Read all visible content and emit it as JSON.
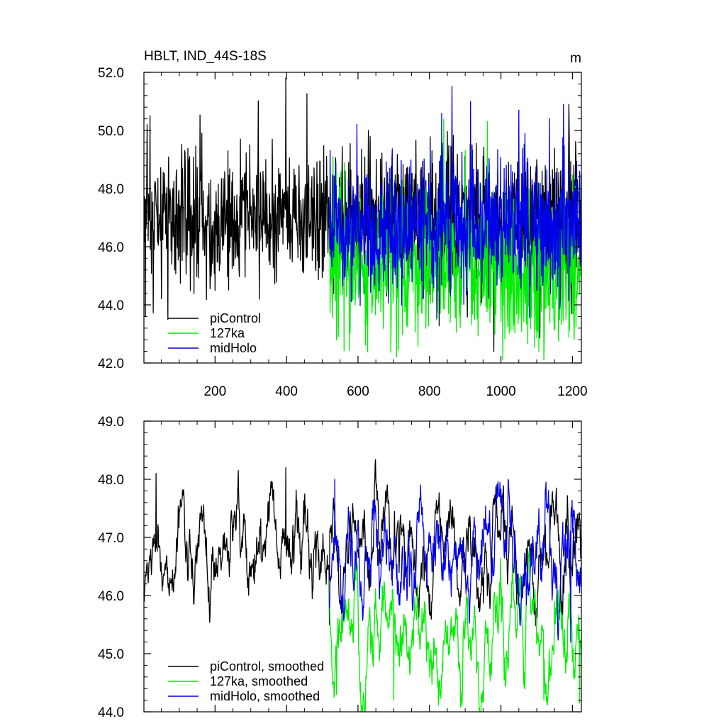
{
  "figure": {
    "title": "HBLT, IND_44S-18S",
    "units": "m"
  },
  "colors": {
    "piControl": "#000000",
    "127ka": "#00ee00",
    "midHolo": "#0000ee"
  },
  "chart_data": [
    {
      "type": "line",
      "title": "HBLT, IND_44S-18S",
      "units": "m",
      "xlim": [
        1,
        1225
      ],
      "ylim": [
        42.0,
        52.0
      ],
      "yticks": [
        "42.0",
        "44.0",
        "46.0",
        "48.0",
        "50.0",
        "52.0"
      ],
      "xticks": [
        "200",
        "400",
        "600",
        "800",
        "1000",
        "1200"
      ],
      "legend_position": "bottom-left",
      "series": [
        {
          "name": "piControl",
          "color": "#000000",
          "x_range": [
            1,
            1225
          ],
          "mean": 47.0,
          "std": 1.2,
          "notable_points": [
            [
              5,
              43.6
            ],
            [
              10,
              50.2
            ],
            [
              68,
              43.5
            ],
            [
              398,
              51.8
            ],
            [
              980,
              42.4
            ],
            [
              1190,
              50.9
            ]
          ]
        },
        {
          "name": "127ka",
          "color": "#00ee00",
          "x_range": [
            520,
            1225
          ],
          "mean": 45.3,
          "std": 1.3,
          "notable_points": [
            [
              530,
              49.1
            ],
            [
              540,
              42.8
            ],
            [
              962,
              50.3
            ],
            [
              1005,
              42.1
            ],
            [
              1120,
              42.1
            ]
          ]
        },
        {
          "name": "midHolo",
          "color": "#0000ee",
          "x_range": [
            520,
            1225
          ],
          "mean": 46.7,
          "std": 1.2,
          "notable_points": [
            [
              915,
              51.0
            ],
            [
              1050,
              50.7
            ],
            [
              1175,
              50.9
            ],
            [
              1220,
              48.6
            ]
          ]
        }
      ],
      "legend": [
        "piControl",
        "127ka",
        "midHolo"
      ]
    },
    {
      "type": "line",
      "xlim": [
        1,
        1225
      ],
      "ylim": [
        44.0,
        49.0
      ],
      "yticks": [
        "44.0",
        "45.0",
        "46.0",
        "47.0",
        "48.0",
        "49.0"
      ],
      "legend_position": "bottom-left",
      "series": [
        {
          "name": "piControl, smoothed",
          "color": "#000000",
          "x_range": [
            1,
            1225
          ],
          "mean": 46.8,
          "std": 0.5,
          "notable_points": [
            [
              35,
              48.1
            ],
            [
              265,
              48.15
            ],
            [
              398,
              48.2
            ],
            [
              520,
              45.5
            ],
            [
              1195,
              45.5
            ]
          ]
        },
        {
          "name": "127ka, smoothed",
          "color": "#00ee00",
          "x_range": [
            520,
            1225
          ],
          "mean": 45.3,
          "std": 0.55,
          "notable_points": [
            [
              540,
              44.3
            ],
            [
              700,
              44.2
            ],
            [
              1120,
              44.2
            ],
            [
              1220,
              44.15
            ]
          ]
        },
        {
          "name": "midHolo, smoothed",
          "color": "#0000ee",
          "x_range": [
            520,
            1225
          ],
          "mean": 46.7,
          "std": 0.5,
          "notable_points": [
            [
              535,
              48.0
            ],
            [
              775,
              47.9
            ],
            [
              1020,
              48.0
            ],
            [
              1195,
              45.2
            ]
          ]
        }
      ],
      "legend": [
        "piControl, smoothed",
        "127ka, smoothed",
        "midHolo, smoothed"
      ]
    }
  ]
}
